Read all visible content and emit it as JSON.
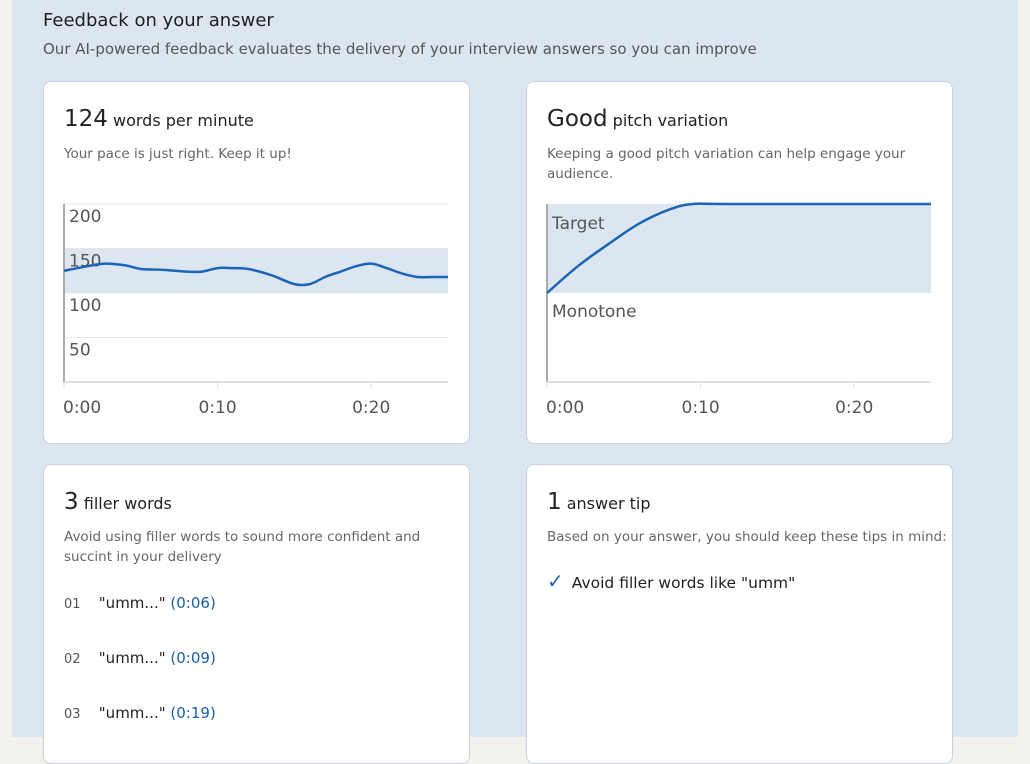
{
  "header": {
    "title": "Feedback on your answer",
    "subtitle": "Our AI-powered feedback evaluates the delivery of your interview answers so you can improve"
  },
  "pace": {
    "value": "124",
    "label": "words per minute",
    "description": "Your pace is just right. Keep it up!"
  },
  "pitch": {
    "value": "Good",
    "label": "pitch variation",
    "description": "Keeping a good pitch variation can help engage your audience."
  },
  "filler": {
    "value": "3",
    "label": "filler words",
    "description": "Avoid using filler words to sound more confident and succint in your delivery",
    "items": [
      {
        "index": "01",
        "word": "\"umm...\"",
        "time": "(0:06)"
      },
      {
        "index": "02",
        "word": "\"umm...\"",
        "time": "(0:09)"
      },
      {
        "index": "03",
        "word": "\"umm...\"",
        "time": "(0:19)"
      }
    ]
  },
  "tips": {
    "value": "1",
    "label": "answer tip",
    "description": "Based on your answer, you should keep these tips in mind:",
    "items": [
      {
        "icon": "check-icon",
        "text": "Avoid filler words like \"umm\""
      }
    ]
  },
  "colors": {
    "line": "#1a64b8",
    "band": "#dce6f0"
  },
  "chart_data": [
    {
      "type": "line",
      "ylim": [
        0,
        200
      ],
      "yticks": [
        "200",
        "150",
        "100",
        "50"
      ],
      "ytick_values": [
        200,
        150,
        100,
        50
      ],
      "xticks": [
        "0:00",
        "0:10",
        "0:20"
      ],
      "xtick_values": [
        0,
        10,
        20
      ],
      "xlim": [
        0,
        25
      ],
      "target_band": [
        100,
        150
      ],
      "x": [
        0,
        1.5,
        2.7,
        4,
        5,
        6.5,
        8,
        9,
        10,
        11,
        12,
        13.5,
        15,
        16,
        17,
        18,
        19,
        20,
        21,
        22,
        23,
        24,
        25
      ],
      "y": [
        125,
        130,
        133,
        131,
        127,
        126,
        124,
        124,
        128,
        128,
        127,
        120,
        110,
        110,
        118,
        124,
        130,
        133,
        128,
        122,
        118,
        118,
        118
      ]
    },
    {
      "type": "line",
      "band_labels": [
        "Target",
        "Monotone"
      ],
      "xticks": [
        "0:00",
        "0:10",
        "0:20"
      ],
      "xtick_values": [
        0,
        10,
        20
      ],
      "xlim": [
        0,
        25
      ],
      "ylim": [
        0,
        2
      ],
      "target_band": [
        1,
        2
      ],
      "x": [
        0,
        2,
        4,
        6,
        8,
        9.5,
        12,
        25
      ],
      "y": [
        1,
        1.3,
        1.55,
        1.78,
        1.94,
        2,
        2,
        2
      ]
    }
  ]
}
